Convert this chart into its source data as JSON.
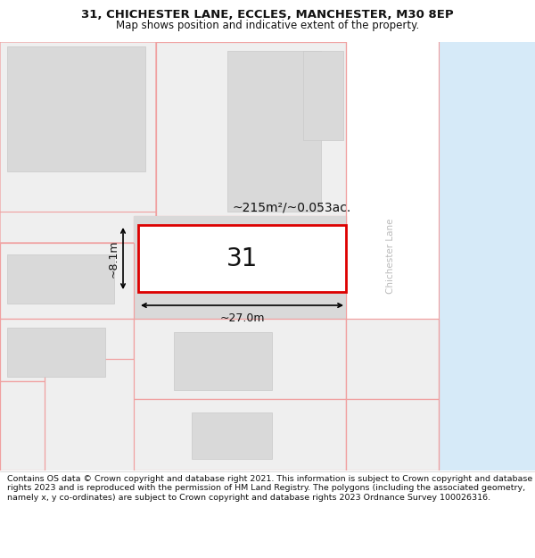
{
  "title_line1": "31, CHICHESTER LANE, ECCLES, MANCHESTER, M30 8EP",
  "title_line2": "Map shows position and indicative extent of the property.",
  "footer_text": "Contains OS data © Crown copyright and database right 2021. This information is subject to Crown copyright and database rights 2023 and is reproduced with the permission of HM Land Registry. The polygons (including the associated geometry, namely x, y co-ordinates) are subject to Crown copyright and database rights 2023 Ordnance Survey 100026316.",
  "bg_color": "#efefef",
  "road_color": "#ffffff",
  "building_fill": "#d9d9d9",
  "plot_outline_color": "#f0a0a0",
  "highlight_edge": "#dd0000",
  "water_color": "#d6eaf8",
  "road_label": "Chichester Lane",
  "area_label": "~215m²/~0.053ac.",
  "number_label": "31",
  "width_label": "~27.0m",
  "height_label": "~8.1m",
  "title_fontsize": 9.5,
  "subtitle_fontsize": 8.5,
  "footer_fontsize": 6.8
}
